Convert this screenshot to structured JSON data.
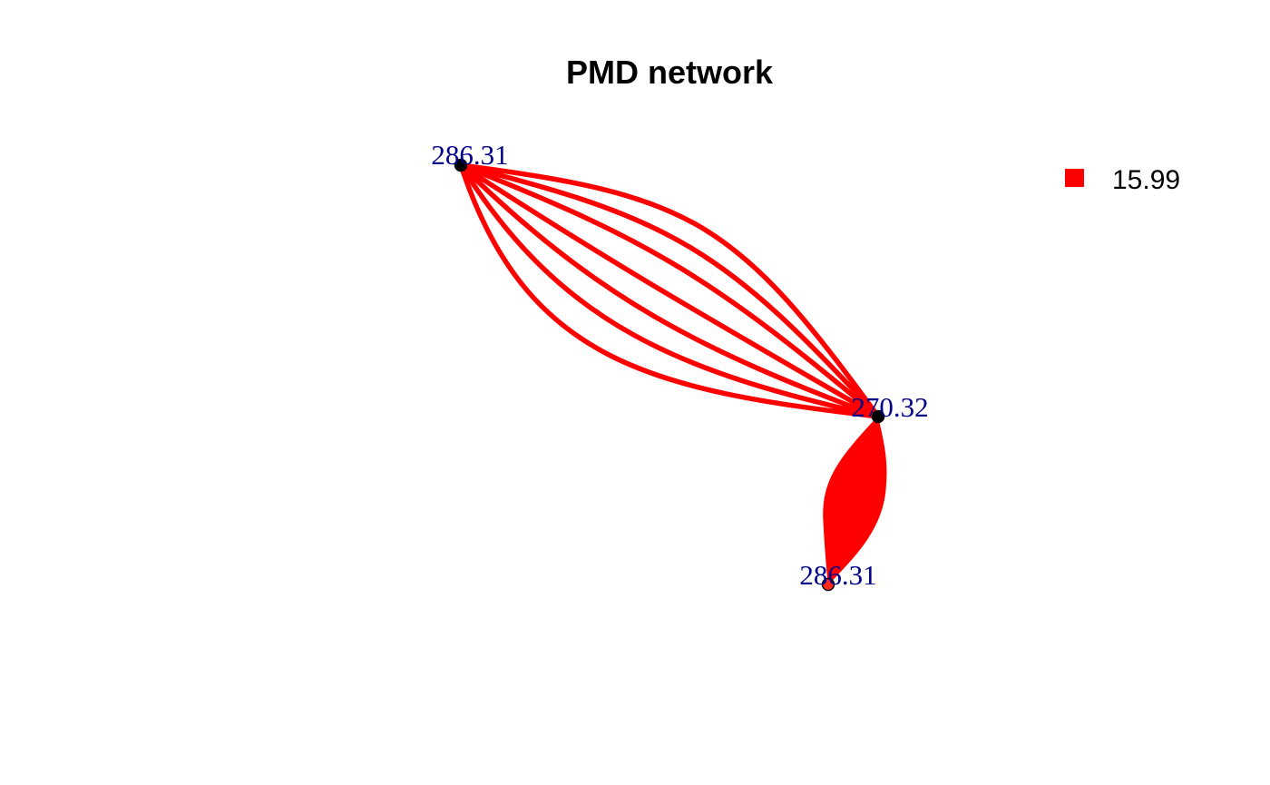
{
  "title": "PMD network",
  "colors": {
    "edge": "#ff0000",
    "node_default": "#000000",
    "node_highlight": "#ff2a1a",
    "node_label": "#00008b",
    "title": "#000000"
  },
  "nodes": [
    {
      "id": "n1",
      "label": "286.31",
      "fill": "node_default"
    },
    {
      "id": "n2",
      "label": "270.32",
      "fill": "node_default"
    },
    {
      "id": "n3",
      "label": "286.31",
      "fill": "node_highlight"
    }
  ],
  "edges": [
    {
      "from": "n1",
      "to": "n2",
      "weight": 15.99,
      "multiplicity": 7
    },
    {
      "from": "n2",
      "to": "n3",
      "weight": 15.99,
      "multiplicity": "many"
    }
  ],
  "legend": {
    "items": [
      {
        "label": "15.99",
        "color": "#ff0000"
      }
    ]
  }
}
